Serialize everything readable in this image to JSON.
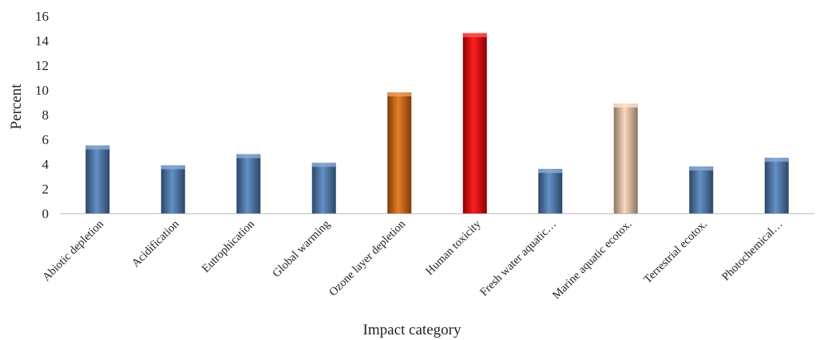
{
  "chart_data": {
    "type": "bar",
    "title": "",
    "xlabel": "Impact category",
    "ylabel": "Percent",
    "ylim": [
      0,
      16
    ],
    "yticks": [
      0,
      2,
      4,
      6,
      8,
      10,
      12,
      14,
      16
    ],
    "grid": false,
    "legend": "none",
    "categories": [
      "Abiotic depletion",
      "Acidification",
      "Eutrophication",
      "Global warming",
      "Ozone layer depletion",
      "Human toxicity",
      "Fresh water aquatic…",
      "Marine aquatic ecotox.",
      "Terrestrial ecotox.",
      "Photochemical…"
    ],
    "values": [
      5.5,
      3.9,
      4.8,
      4.1,
      9.8,
      14.6,
      3.6,
      8.9,
      3.8,
      4.5
    ],
    "colors": [
      "#4f81bd",
      "#4f81bd",
      "#4f81bd",
      "#4f81bd",
      "#e36c0a",
      "#ff0000",
      "#4f81bd",
      "#fbd4b4",
      "#4f81bd",
      "#4f81bd"
    ]
  }
}
